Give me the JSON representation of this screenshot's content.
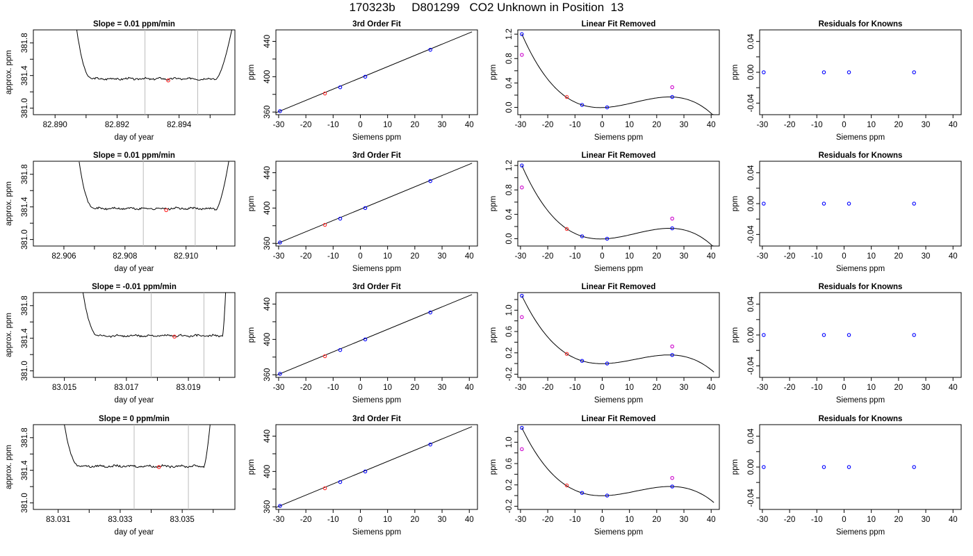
{
  "figure_title": "170323b     D801299   CO2 Unknown in Position  13",
  "chart_data": [
    {
      "panel": "r1-trace",
      "type": "line",
      "title": "Slope =  0.01  ppm/min",
      "xlabel": "day of year",
      "ylabel": "approx. ppm",
      "xlim": [
        82.8893,
        82.8958
      ],
      "ylim": [
        380.92,
        381.96
      ],
      "xticks": [
        "82.890",
        "82.892",
        "82.894"
      ],
      "xtick_values": [
        82.89,
        82.892,
        82.894
      ],
      "yticks": [
        "381.0",
        "381.4",
        "381.8"
      ],
      "ytick_values": [
        381.0,
        381.4,
        381.8
      ],
      "ytick_minor": [
        381.2,
        381.6
      ],
      "xtick_minor": [
        82.891,
        82.893,
        82.895
      ],
      "vlines": [
        82.8929,
        82.8946
      ],
      "rise_start": 82.8907,
      "flat_start": 82.8912,
      "flat_end": 82.8952,
      "rise_end": 82.8957,
      "flat_level": 381.36,
      "marker": {
        "x": 82.89365,
        "y": 381.34,
        "color": "#ff2d2d"
      }
    },
    {
      "panel": "r1-fit",
      "type": "scatter",
      "title": "3rd Order Fit",
      "xlabel": "Siemens ppm",
      "ylabel": "ppm",
      "xlim": [
        -31,
        43
      ],
      "ylim": [
        357,
        453
      ],
      "xticks": [
        -30,
        -20,
        -10,
        0,
        10,
        20,
        30,
        40
      ],
      "yticks": [
        360,
        400,
        440
      ],
      "ytick_minor": [
        380,
        420
      ],
      "line": [
        [
          -31,
          359.2
        ],
        [
          41,
          450.8
        ]
      ],
      "points": [
        {
          "x": -29.5,
          "y": 361.0,
          "color": "#0000ff"
        },
        {
          "x": -13.0,
          "y": 381.0,
          "color": "#ff2d2d"
        },
        {
          "x": -7.4,
          "y": 388.0,
          "color": "#0000ff"
        },
        {
          "x": 1.8,
          "y": 400.0,
          "color": "#0000ff"
        },
        {
          "x": 25.7,
          "y": 430.5,
          "color": "#0000ff"
        }
      ]
    },
    {
      "panel": "r1-lin",
      "type": "scatter",
      "title": "Linear Fit Removed",
      "xlabel": "Siemens ppm",
      "ylabel": "ppm",
      "xlim": [
        -31,
        43
      ],
      "ylim": [
        -0.12,
        1.27
      ],
      "xticks": [
        -30,
        -20,
        -10,
        0,
        10,
        20,
        30,
        40
      ],
      "yticks": [
        0.0,
        0.4,
        0.8,
        1.2
      ],
      "ytick_labels": [
        "0.0",
        "0.4",
        "0.8",
        "1.2"
      ],
      "ytick_minor": [
        0.2,
        0.6,
        1.0
      ],
      "curve_range": [
        -29.5,
        41
      ],
      "points": [
        {
          "x": -29.5,
          "y": 1.2,
          "color": "#0000ff"
        },
        {
          "x": -13.0,
          "y": 0.17,
          "color": "#ff2d2d"
        },
        {
          "x": -7.4,
          "y": 0.04,
          "color": "#0000ff"
        },
        {
          "x": 1.8,
          "y": 0.0,
          "color": "#0000ff"
        },
        {
          "x": 25.7,
          "y": 0.17,
          "color": "#0000ff"
        },
        {
          "x": -29.5,
          "y": 0.86,
          "color": "#cc00cc",
          "open": true
        },
        {
          "x": 25.7,
          "y": 0.33,
          "color": "#cc00cc",
          "open": true
        }
      ]
    },
    {
      "panel": "r1-res",
      "type": "scatter",
      "title": "Residuals for Knowns",
      "xlabel": "Siemens ppm",
      "ylabel": "ppm",
      "xlim": [
        -31,
        43
      ],
      "ylim": [
        -0.055,
        0.055
      ],
      "xticks": [
        -30,
        -20,
        -10,
        0,
        10,
        20,
        30,
        40
      ],
      "yticks": [
        -0.04,
        0.0,
        0.04
      ],
      "ytick_labels": [
        "-0.04",
        "0.00",
        "0.04"
      ],
      "ytick_minor": [
        -0.02,
        0.02
      ],
      "points": [
        {
          "x": -29.5,
          "y": 0,
          "color": "#0000ff"
        },
        {
          "x": -7.4,
          "y": 0,
          "color": "#0000ff"
        },
        {
          "x": 1.8,
          "y": 0,
          "color": "#0000ff"
        },
        {
          "x": 25.7,
          "y": 0,
          "color": "#0000ff"
        }
      ]
    },
    {
      "panel": "r2-trace",
      "type": "line",
      "title": "Slope =  0.01  ppm/min",
      "xlabel": "day of year",
      "ylabel": "approx. ppm",
      "xlim": [
        82.905,
        82.9116
      ],
      "ylim": [
        380.92,
        381.96
      ],
      "xticks": [
        "82.906",
        "82.908",
        "82.910"
      ],
      "xtick_values": [
        82.906,
        82.908,
        82.91
      ],
      "yticks": [
        "381.0",
        "381.4",
        "381.8"
      ],
      "ytick_values": [
        381.0,
        381.4,
        381.8
      ],
      "ytick_minor": [
        381.2,
        381.6
      ],
      "xtick_minor": [
        82.907,
        82.909,
        82.911
      ],
      "vlines": [
        82.9086,
        82.9103
      ],
      "rise_start": 82.9065,
      "flat_start": 82.907,
      "flat_end": 82.911,
      "rise_end": 82.9114,
      "flat_level": 381.38,
      "marker": {
        "x": 82.90935,
        "y": 381.36,
        "color": "#ff2d2d"
      }
    },
    {
      "panel": "r2-fit",
      "type": "scatter",
      "title": "3rd Order Fit",
      "xlabel": "Siemens ppm",
      "ylabel": "ppm",
      "xlim": [
        -31,
        43
      ],
      "ylim": [
        357,
        453
      ],
      "xticks": [
        -30,
        -20,
        -10,
        0,
        10,
        20,
        30,
        40
      ],
      "yticks": [
        360,
        400,
        440
      ],
      "ytick_minor": [
        380,
        420
      ],
      "line": [
        [
          -31,
          359.2
        ],
        [
          41,
          450.8
        ]
      ],
      "points": [
        {
          "x": -29.5,
          "y": 361.0,
          "color": "#0000ff"
        },
        {
          "x": -13.0,
          "y": 381.0,
          "color": "#ff2d2d"
        },
        {
          "x": -7.4,
          "y": 388.0,
          "color": "#0000ff"
        },
        {
          "x": 1.8,
          "y": 400.0,
          "color": "#0000ff"
        },
        {
          "x": 25.7,
          "y": 430.5,
          "color": "#0000ff"
        }
      ]
    },
    {
      "panel": "r2-lin",
      "type": "scatter",
      "title": "Linear Fit Removed",
      "xlabel": "Siemens ppm",
      "ylabel": "ppm",
      "xlim": [
        -31,
        43
      ],
      "ylim": [
        -0.12,
        1.27
      ],
      "xticks": [
        -30,
        -20,
        -10,
        0,
        10,
        20,
        30,
        40
      ],
      "yticks": [
        0.0,
        0.4,
        0.8,
        1.2
      ],
      "ytick_labels": [
        "0.0",
        "0.4",
        "0.8",
        "1.2"
      ],
      "ytick_minor": [
        0.2,
        0.6,
        1.0
      ],
      "curve_range": [
        -29.5,
        41
      ],
      "points": [
        {
          "x": -29.5,
          "y": 1.2,
          "color": "#0000ff"
        },
        {
          "x": -13.0,
          "y": 0.16,
          "color": "#ff2d2d"
        },
        {
          "x": -7.4,
          "y": 0.04,
          "color": "#0000ff"
        },
        {
          "x": 1.8,
          "y": 0.0,
          "color": "#0000ff"
        },
        {
          "x": 25.7,
          "y": 0.17,
          "color": "#0000ff"
        },
        {
          "x": -29.5,
          "y": 0.84,
          "color": "#cc00cc",
          "open": true
        },
        {
          "x": 25.7,
          "y": 0.33,
          "color": "#cc00cc",
          "open": true
        }
      ]
    },
    {
      "panel": "r2-res",
      "type": "scatter",
      "title": "Residuals for Knowns",
      "xlabel": "Siemens ppm",
      "ylabel": "ppm",
      "xlim": [
        -31,
        43
      ],
      "ylim": [
        -0.055,
        0.055
      ],
      "xticks": [
        -30,
        -20,
        -10,
        0,
        10,
        20,
        30,
        40
      ],
      "yticks": [
        -0.04,
        0.0,
        0.04
      ],
      "ytick_labels": [
        "-0.04",
        "0.00",
        "0.04"
      ],
      "ytick_minor": [
        -0.02,
        0.02
      ],
      "points": [
        {
          "x": -29.5,
          "y": 0,
          "color": "#0000ff"
        },
        {
          "x": -7.4,
          "y": 0,
          "color": "#0000ff"
        },
        {
          "x": 1.8,
          "y": 0,
          "color": "#0000ff"
        },
        {
          "x": 25.7,
          "y": 0,
          "color": "#0000ff"
        }
      ]
    },
    {
      "panel": "r3-trace",
      "type": "line",
      "title": "Slope =  -0.01  ppm/min",
      "xlabel": "day of year",
      "ylabel": "approx. ppm",
      "xlim": [
        83.014,
        83.0205
      ],
      "ylim": [
        380.92,
        381.96
      ],
      "xticks": [
        "83.015",
        "83.017",
        "83.019"
      ],
      "xtick_values": [
        83.015,
        83.017,
        83.019
      ],
      "yticks": [
        "381.0",
        "381.4",
        "381.8"
      ],
      "ytick_values": [
        381.0,
        381.4,
        381.8
      ],
      "ytick_minor": [
        381.2,
        381.6
      ],
      "xtick_minor": [
        83.016,
        83.018,
        83.02
      ],
      "vlines": [
        83.0178,
        83.0195
      ],
      "rise_start": 83.0156,
      "flat_start": 83.0161,
      "flat_end": 83.0201,
      "rise_end": 83.0202,
      "flat_level": 381.43,
      "marker": {
        "x": 83.01855,
        "y": 381.42,
        "color": "#ff2d2d"
      }
    },
    {
      "panel": "r3-fit",
      "type": "scatter",
      "title": "3rd Order Fit",
      "xlabel": "Siemens ppm",
      "ylabel": "ppm",
      "xlim": [
        -31,
        43
      ],
      "ylim": [
        357,
        453
      ],
      "xticks": [
        -30,
        -20,
        -10,
        0,
        10,
        20,
        30,
        40
      ],
      "yticks": [
        360,
        400,
        440
      ],
      "ytick_minor": [
        380,
        420
      ],
      "line": [
        [
          -31,
          359.2
        ],
        [
          41,
          450.8
        ]
      ],
      "points": [
        {
          "x": -29.5,
          "y": 361.0,
          "color": "#0000ff"
        },
        {
          "x": -13.0,
          "y": 381.0,
          "color": "#ff2d2d"
        },
        {
          "x": -7.4,
          "y": 388.0,
          "color": "#0000ff"
        },
        {
          "x": 1.8,
          "y": 400.0,
          "color": "#0000ff"
        },
        {
          "x": 25.7,
          "y": 430.5,
          "color": "#0000ff"
        }
      ]
    },
    {
      "panel": "r3-lin",
      "type": "scatter",
      "title": "Linear Fit Removed",
      "xlabel": "Siemens ppm",
      "ylabel": "ppm",
      "xlim": [
        -31,
        43
      ],
      "ylim": [
        -0.26,
        1.33
      ],
      "xticks": [
        -30,
        -20,
        -10,
        0,
        10,
        20,
        30,
        40
      ],
      "yticks": [
        -0.2,
        0.2,
        0.6,
        1.0
      ],
      "ytick_labels": [
        "-0.2",
        "0.2",
        "0.6",
        "1.0"
      ],
      "ytick_minor": [
        0.0,
        0.4,
        0.8,
        1.2
      ],
      "curve_range": [
        -29.5,
        41
      ],
      "points": [
        {
          "x": -29.5,
          "y": 1.27,
          "color": "#0000ff"
        },
        {
          "x": -13.0,
          "y": 0.18,
          "color": "#ff2d2d"
        },
        {
          "x": -7.4,
          "y": 0.05,
          "color": "#0000ff"
        },
        {
          "x": 1.8,
          "y": 0.0,
          "color": "#0000ff"
        },
        {
          "x": 25.7,
          "y": 0.16,
          "color": "#0000ff"
        },
        {
          "x": -29.5,
          "y": 0.87,
          "color": "#cc00cc",
          "open": true
        },
        {
          "x": 25.7,
          "y": 0.32,
          "color": "#cc00cc",
          "open": true
        }
      ]
    },
    {
      "panel": "r3-res",
      "type": "scatter",
      "title": "Residuals for Knowns",
      "xlabel": "Siemens ppm",
      "ylabel": "ppm",
      "xlim": [
        -31,
        43
      ],
      "ylim": [
        -0.055,
        0.055
      ],
      "xticks": [
        -30,
        -20,
        -10,
        0,
        10,
        20,
        30,
        40
      ],
      "yticks": [
        -0.04,
        0.0,
        0.04
      ],
      "ytick_labels": [
        "-0.04",
        "0.00",
        "0.04"
      ],
      "ytick_minor": [
        -0.02,
        0.02
      ],
      "points": [
        {
          "x": -29.5,
          "y": 0,
          "color": "#0000ff"
        },
        {
          "x": -7.4,
          "y": 0,
          "color": "#0000ff"
        },
        {
          "x": 1.8,
          "y": 0,
          "color": "#0000ff"
        },
        {
          "x": 25.7,
          "y": 0,
          "color": "#0000ff"
        }
      ]
    },
    {
      "panel": "r4-trace",
      "type": "line",
      "title": "Slope =  0  ppm/min",
      "xlabel": "day of year",
      "ylabel": "approx. ppm",
      "xlim": [
        83.0302,
        83.0367
      ],
      "ylim": [
        380.92,
        381.96
      ],
      "xticks": [
        "83.031",
        "83.033",
        "83.035"
      ],
      "xtick_values": [
        83.031,
        83.033,
        83.035
      ],
      "yticks": [
        "381.0",
        "381.4",
        "381.8"
      ],
      "ytick_values": [
        381.0,
        381.4,
        381.8
      ],
      "ytick_minor": [
        381.2,
        381.6
      ],
      "xtick_minor": [
        83.032,
        83.034,
        83.036
      ],
      "vlines": [
        83.03345,
        83.0352
      ],
      "rise_start": 83.0312,
      "flat_start": 83.0317,
      "flat_end": 83.0357,
      "rise_end": 83.0359,
      "flat_level": 381.45,
      "marker": {
        "x": 83.03425,
        "y": 381.44,
        "color": "#ff2d2d"
      }
    },
    {
      "panel": "r4-fit",
      "type": "scatter",
      "title": "3rd Order Fit",
      "xlabel": "Siemens ppm",
      "ylabel": "ppm",
      "xlim": [
        -31,
        43
      ],
      "ylim": [
        357,
        453
      ],
      "xticks": [
        -30,
        -20,
        -10,
        0,
        10,
        20,
        30,
        40
      ],
      "yticks": [
        360,
        400,
        440
      ],
      "ytick_minor": [
        380,
        420
      ],
      "line": [
        [
          -31,
          359.2
        ],
        [
          41,
          450.8
        ]
      ],
      "points": [
        {
          "x": -29.5,
          "y": 361.0,
          "color": "#0000ff"
        },
        {
          "x": -13.0,
          "y": 381.0,
          "color": "#ff2d2d"
        },
        {
          "x": -7.4,
          "y": 388.0,
          "color": "#0000ff"
        },
        {
          "x": 1.8,
          "y": 400.0,
          "color": "#0000ff"
        },
        {
          "x": 25.7,
          "y": 430.5,
          "color": "#0000ff"
        }
      ]
    },
    {
      "panel": "r4-lin",
      "type": "scatter",
      "title": "Linear Fit Removed",
      "xlabel": "Siemens ppm",
      "ylabel": "ppm",
      "xlim": [
        -31,
        43
      ],
      "ylim": [
        -0.26,
        1.33
      ],
      "xticks": [
        -30,
        -20,
        -10,
        0,
        10,
        20,
        30,
        40
      ],
      "yticks": [
        -0.2,
        0.2,
        0.6,
        1.0
      ],
      "ytick_labels": [
        "-0.2",
        "0.2",
        "0.6",
        "1.0"
      ],
      "ytick_minor": [
        0.0,
        0.4,
        0.8,
        1.2
      ],
      "curve_range": [
        -29.5,
        41
      ],
      "points": [
        {
          "x": -29.5,
          "y": 1.27,
          "color": "#0000ff"
        },
        {
          "x": -13.0,
          "y": 0.19,
          "color": "#ff2d2d"
        },
        {
          "x": -7.4,
          "y": 0.05,
          "color": "#0000ff"
        },
        {
          "x": 1.8,
          "y": 0.0,
          "color": "#0000ff"
        },
        {
          "x": 25.7,
          "y": 0.17,
          "color": "#0000ff"
        },
        {
          "x": -29.5,
          "y": 0.87,
          "color": "#cc00cc",
          "open": true
        },
        {
          "x": 25.7,
          "y": 0.33,
          "color": "#cc00cc",
          "open": true
        }
      ]
    },
    {
      "panel": "r4-res",
      "type": "scatter",
      "title": "Residuals for Knowns",
      "xlabel": "Siemens ppm",
      "ylabel": "ppm",
      "xlim": [
        -31,
        43
      ],
      "ylim": [
        -0.055,
        0.055
      ],
      "xticks": [
        -30,
        -20,
        -10,
        0,
        10,
        20,
        30,
        40
      ],
      "yticks": [
        -0.04,
        0.0,
        0.04
      ],
      "ytick_labels": [
        "-0.04",
        "0.00",
        "0.04"
      ],
      "ytick_minor": [
        -0.02,
        0.02
      ],
      "points": [
        {
          "x": -29.5,
          "y": 0,
          "color": "#0000ff"
        },
        {
          "x": -7.4,
          "y": 0,
          "color": "#0000ff"
        },
        {
          "x": 1.8,
          "y": 0,
          "color": "#0000ff"
        },
        {
          "x": 25.7,
          "y": 0,
          "color": "#0000ff"
        }
      ]
    }
  ]
}
